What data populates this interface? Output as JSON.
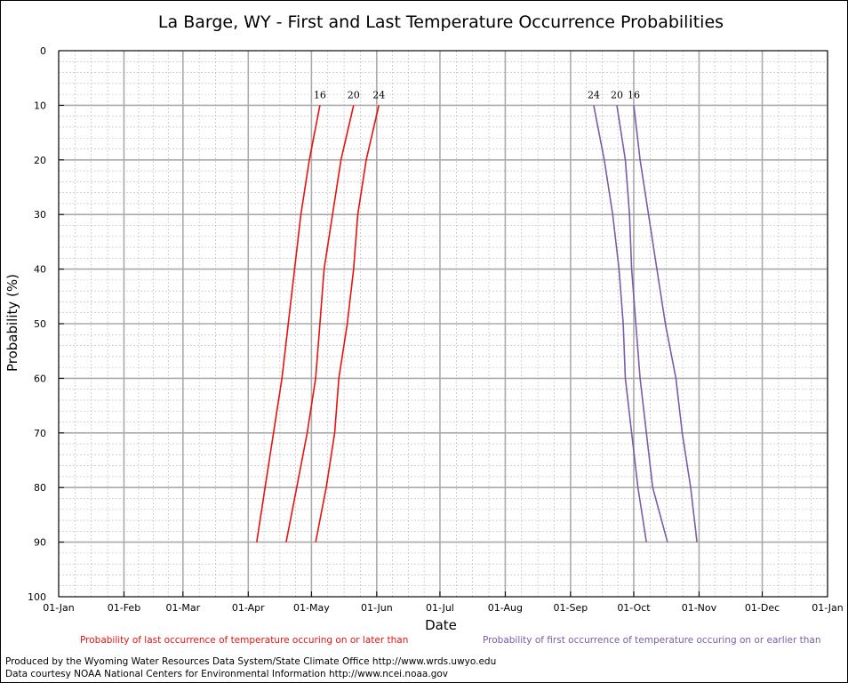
{
  "chart_data": {
    "type": "line",
    "title": "La Barge, WY - First and Last Temperature Occurrence Probabilities",
    "xlabel": "Date",
    "ylabel": "Probability (%)",
    "x_ticks": [
      "01-Jan",
      "01-Feb",
      "01-Mar",
      "01-Apr",
      "01-May",
      "01-Jun",
      "01-Jul",
      "01-Aug",
      "01-Sep",
      "01-Oct",
      "01-Nov",
      "01-Dec",
      "01-Jan"
    ],
    "x_tick_days": [
      0,
      31,
      59,
      90,
      120,
      151,
      181,
      212,
      243,
      273,
      304,
      334,
      365
    ],
    "y_ticks": [
      0,
      10,
      20,
      30,
      40,
      50,
      60,
      70,
      80,
      90,
      100
    ],
    "ylim": [
      0,
      100
    ],
    "y_inverted": true,
    "grid": true,
    "probabilities": [
      10,
      20,
      30,
      40,
      50,
      60,
      70,
      80,
      90
    ],
    "last_occurrence": {
      "legend": "Probability of last occurrence of temperature occuring on or later than",
      "color": "#e8120f",
      "series": [
        {
          "name": "16",
          "dates": [
            "May 05",
            "Apr 30",
            "Apr 26",
            "Apr 23",
            "Apr 20",
            "Apr 17",
            "Apr 13",
            "Apr 09",
            "Apr 05"
          ]
        },
        {
          "name": "20",
          "dates": [
            "May 21",
            "May 15",
            "May 11",
            "May 07",
            "May 05",
            "May 03",
            "Apr 29",
            "Apr 24",
            "Apr 19"
          ]
        },
        {
          "name": "24",
          "dates": [
            "Jun 02",
            "May 27",
            "May 23",
            "May 21",
            "May 18",
            "May 14",
            "May 12",
            "May 08",
            "May 03"
          ]
        }
      ]
    },
    "first_occurrence": {
      "legend": "Probability of first occurrence of temperature occuring on or earlier than",
      "color": "#7a5ca8",
      "series": [
        {
          "name": "24",
          "dates": [
            "Sep 12",
            "Sep 17",
            "Sep 21",
            "Sep 24",
            "Sep 26",
            "Sep 27",
            "Sep 30",
            "Oct 03",
            "Oct 07"
          ]
        },
        {
          "name": "20",
          "dates": [
            "Sep 23",
            "Sep 27",
            "Sep 29",
            "Sep 30",
            "Oct 02",
            "Oct 04",
            "Oct 07",
            "Oct 10",
            "Oct 17"
          ]
        },
        {
          "name": "16",
          "dates": [
            "Oct 01",
            "Oct 04",
            "Oct 08",
            "Oct 12",
            "Oct 16",
            "Oct 21",
            "Oct 24",
            "Oct 28",
            "Oct 31"
          ]
        }
      ]
    }
  },
  "credits": {
    "line1": "Produced by the Wyoming Water Resources Data System/State Climate Office http://www.wrds.uwyo.edu",
    "line2": "Data courtesy NOAA National Centers for Environmental Information http://www.ncei.noaa.gov"
  }
}
